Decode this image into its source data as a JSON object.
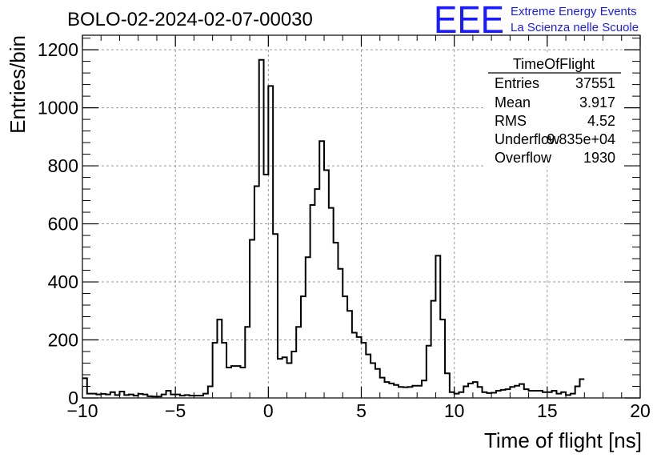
{
  "title": "BOLO-02-2024-02-07-00030",
  "logo": {
    "letters": "EEE",
    "line1": "Extreme Energy Events",
    "line2": "La Scienza nelle Scuole",
    "color": "#1a1aff"
  },
  "stats": {
    "name": "TimeOfFlight",
    "rows": [
      {
        "label": "Entries",
        "value": "37551"
      },
      {
        "label": "Mean",
        "value": "3.917"
      },
      {
        "label": "RMS",
        "value": "4.52"
      },
      {
        "label": "Underflow",
        "value": "9.835e+04"
      },
      {
        "label": "Overflow",
        "value": "1930"
      }
    ]
  },
  "chart_data": {
    "type": "histogram",
    "xlabel": "Time of flight [ns]",
    "ylabel": "Entries/bin",
    "xlim": [
      -10,
      20
    ],
    "ylim": [
      0,
      1250
    ],
    "grid": true,
    "x_ticks": [
      -10,
      -5,
      0,
      5,
      10,
      15,
      20
    ],
    "x_tick_labels": [
      "−10",
      "−5",
      "0",
      "5",
      "10",
      "15",
      "20"
    ],
    "y_ticks": [
      0,
      200,
      400,
      600,
      800,
      1000,
      1200
    ],
    "bin_start": -10,
    "bin_width": 0.25,
    "values": [
      68,
      15,
      15,
      12,
      14,
      12,
      20,
      10,
      22,
      10,
      12,
      8,
      14,
      12,
      6,
      5,
      5,
      12,
      25,
      12,
      12,
      8,
      10,
      8,
      8,
      8,
      15,
      40,
      190,
      270,
      190,
      105,
      110,
      110,
      105,
      245,
      545,
      730,
      1165,
      770,
      1075,
      565,
      135,
      140,
      120,
      160,
      245,
      350,
      485,
      665,
      720,
      885,
      785,
      655,
      535,
      445,
      350,
      300,
      225,
      210,
      190,
      150,
      120,
      100,
      70,
      55,
      50,
      45,
      38,
      37,
      38,
      42,
      42,
      60,
      180,
      335,
      490,
      270,
      85,
      20,
      15,
      20,
      40,
      50,
      55,
      38,
      20,
      17,
      18,
      25,
      28,
      30,
      38,
      42,
      48,
      30,
      25,
      25,
      25,
      20,
      20,
      25,
      15,
      20,
      10,
      15,
      40,
      65
    ]
  }
}
